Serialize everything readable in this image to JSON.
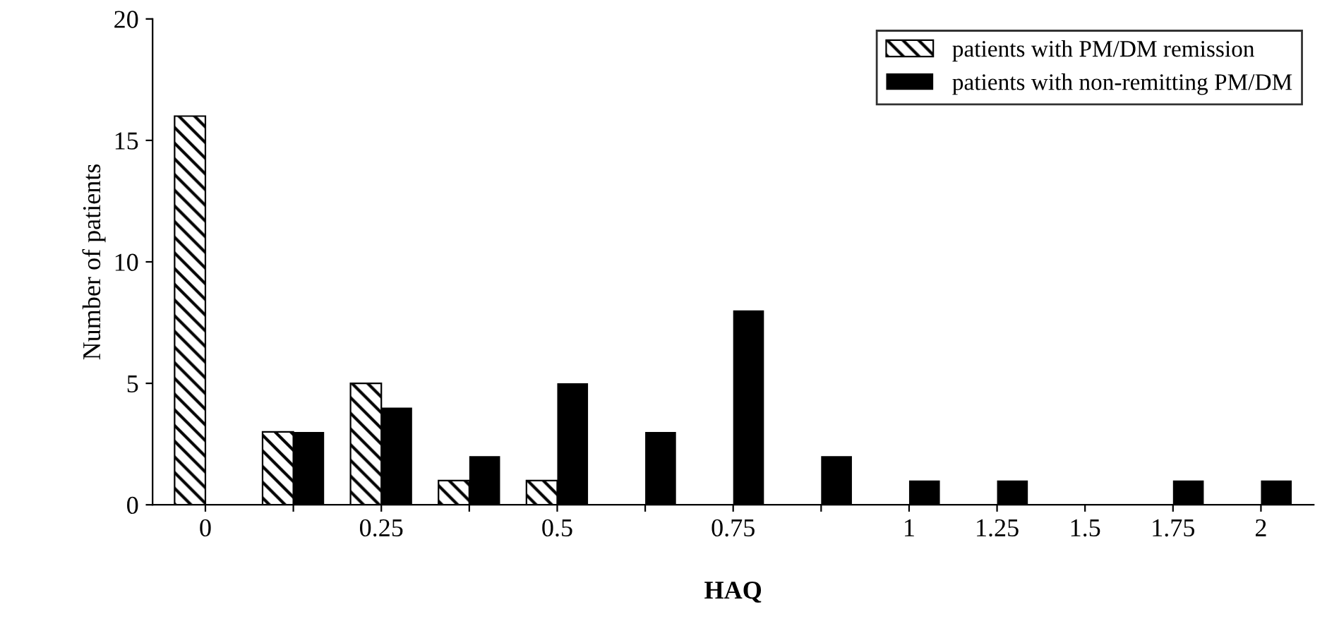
{
  "chart_data": {
    "type": "bar",
    "xlabel": "HAQ",
    "ylabel": "Number of patients",
    "categories": [
      "0",
      null,
      "0.25",
      null,
      "0.5",
      null,
      "0.75",
      null,
      "1",
      "1.25",
      "1.5",
      "1.75",
      "2"
    ],
    "series": [
      {
        "name": "patients with PM/DM remission",
        "color": "#000000",
        "values": [
          16,
          3,
          5,
          1,
          1,
          0,
          0,
          0,
          0,
          0,
          0,
          0,
          0
        ]
      },
      {
        "name": "patients with non-remitting PM/DM",
        "color": "#000000",
        "values": [
          0,
          3,
          4,
          2,
          5,
          3,
          8,
          2,
          1,
          1,
          0,
          1,
          1
        ]
      }
    ],
    "ylim": [
      0,
      20
    ],
    "yticks": [
      0,
      5,
      10,
      15,
      20
    ],
    "grid": false,
    "legend": "top right"
  }
}
